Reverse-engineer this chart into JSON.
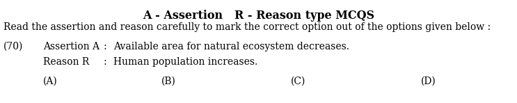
{
  "background_color": "#ffffff",
  "title_text": "A - Assertion   R - Reason type MCQS",
  "title_fontsize": 11.5,
  "title_bold": true,
  "instruction": "Read the assertion and reason carefully to mark the correct option out of the options given below :",
  "instruction_fontsize": 10.0,
  "q_number": "(70)",
  "assertion_label": "Assertion A",
  "assertion_colon": "  :  ",
  "assertion_text": "Available area for natural ecosystem decreases.",
  "reason_label": "Reason R",
  "reason_colon": "    :  ",
  "reason_text": "Human population increases.",
  "options": [
    "(A)",
    "(B)",
    "(C)",
    "(D)"
  ],
  "body_fontsize": 10.0,
  "font_family": "serif"
}
